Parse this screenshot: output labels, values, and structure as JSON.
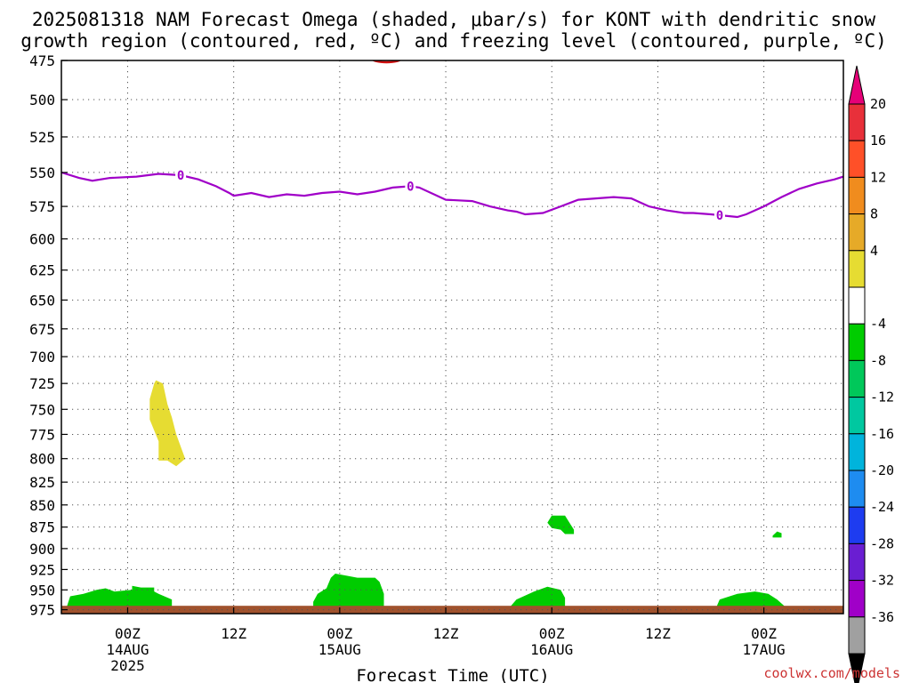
{
  "title_line1": "2025081318 NAM Forecast Omega (shaded, μbar/s) for KONT with dendritic snow",
  "title_line2": "growth region (contoured, red, ºC) and freezing level (contoured, purple, ºC)",
  "credit": "coolwx.com/models",
  "chart_data": {
    "type": "time-height cross-section",
    "xlabel": "Forecast Time (UTC)",
    "x_range_hours": [
      -7.5,
      81
    ],
    "y_range_hpa": [
      475,
      980
    ],
    "y_scale": "log-pressure, inverted (increasing downward)",
    "grid": "dotted, on",
    "y_ticks": [
      475,
      500,
      525,
      550,
      575,
      600,
      625,
      650,
      675,
      700,
      725,
      750,
      775,
      800,
      825,
      850,
      875,
      900,
      925,
      950,
      975
    ],
    "x_ticks": [
      {
        "hour": 0,
        "l1": "00Z",
        "l2": "14AUG",
        "l3": "2025"
      },
      {
        "hour": 12,
        "l1": "12Z",
        "l2": "",
        "l3": ""
      },
      {
        "hour": 24,
        "l1": "00Z",
        "l2": "15AUG",
        "l3": ""
      },
      {
        "hour": 36,
        "l1": "12Z",
        "l2": "",
        "l3": ""
      },
      {
        "hour": 48,
        "l1": "00Z",
        "l2": "16AUG",
        "l3": ""
      },
      {
        "hour": 60,
        "l1": "12Z",
        "l2": "",
        "l3": ""
      },
      {
        "hour": 72,
        "l1": "00Z",
        "l2": "17AUG",
        "l3": ""
      }
    ],
    "freezing_level": {
      "contour_label": "0",
      "color": "#a000c8",
      "label_hours": [
        6,
        32,
        67
      ],
      "points": [
        [
          -7.5,
          550
        ],
        [
          -5.5,
          554
        ],
        [
          -4,
          556
        ],
        [
          -2,
          554
        ],
        [
          1,
          553
        ],
        [
          3.5,
          551
        ],
        [
          6,
          552
        ],
        [
          8,
          555
        ],
        [
          10,
          560
        ],
        [
          11.5,
          565
        ],
        [
          12,
          567
        ],
        [
          14,
          565
        ],
        [
          16,
          568
        ],
        [
          18,
          566
        ],
        [
          20,
          567
        ],
        [
          22,
          565
        ],
        [
          24,
          564
        ],
        [
          26,
          566
        ],
        [
          28,
          564
        ],
        [
          30,
          561
        ],
        [
          32,
          560
        ],
        [
          33,
          561
        ],
        [
          36,
          570
        ],
        [
          39,
          571
        ],
        [
          41,
          575
        ],
        [
          43,
          578
        ],
        [
          44,
          579
        ],
        [
          45,
          581
        ],
        [
          47,
          580
        ],
        [
          49,
          575
        ],
        [
          51,
          570
        ],
        [
          53,
          569
        ],
        [
          55,
          568
        ],
        [
          57,
          569
        ],
        [
          59,
          575
        ],
        [
          61,
          578
        ],
        [
          63,
          580
        ],
        [
          64,
          580
        ],
        [
          66,
          581
        ],
        [
          69,
          583
        ],
        [
          70,
          581
        ],
        [
          72,
          575
        ],
        [
          74,
          568
        ],
        [
          76,
          562
        ],
        [
          78,
          558
        ],
        [
          80,
          555
        ],
        [
          81,
          553
        ]
      ]
    },
    "dgz_contour": {
      "color": "#d01010",
      "label": "",
      "hours": [
        0,
        48
      ],
      "top_hpa": 475
    },
    "ground": {
      "color": "#a0522d",
      "top_hpa": 970
    },
    "omega_areas": [
      {
        "category": "4 to 8",
        "color": "#e6dc32",
        "points": [
          [
            3.2,
            722
          ],
          [
            4,
            725
          ],
          [
            4.5,
            745
          ],
          [
            5,
            758
          ],
          [
            5.5,
            775
          ],
          [
            6.5,
            800
          ],
          [
            5.5,
            808
          ],
          [
            4.5,
            802
          ],
          [
            3.5,
            802
          ],
          [
            3.5,
            782
          ],
          [
            2.5,
            760
          ],
          [
            2.5,
            740
          ],
          [
            3,
            725
          ]
        ]
      },
      {
        "category": "-4 to -8",
        "color": "#00cc00",
        "points": [
          [
            -7,
            975
          ],
          [
            -6.5,
            958
          ],
          [
            -5,
            955
          ],
          [
            -3.5,
            950
          ],
          [
            -2.5,
            948
          ],
          [
            -1.5,
            952
          ],
          [
            0.5,
            950
          ],
          [
            0.5,
            945
          ],
          [
            1.5,
            947
          ],
          [
            3,
            947
          ],
          [
            3,
            952
          ],
          [
            3.5,
            955
          ],
          [
            5,
            962
          ],
          [
            5,
            972
          ]
        ]
      },
      {
        "category": "-4 to -8",
        "color": "#00cc00",
        "points": [
          [
            21,
            975
          ],
          [
            21,
            965
          ],
          [
            21.5,
            955
          ],
          [
            22.5,
            948
          ],
          [
            23,
            935
          ],
          [
            23.5,
            930
          ],
          [
            25,
            933
          ],
          [
            26,
            935
          ],
          [
            28,
            935
          ],
          [
            28.5,
            940
          ],
          [
            29,
            955
          ],
          [
            29,
            975
          ]
        ]
      },
      {
        "category": "-4 to -8",
        "color": "#00cc00",
        "points": [
          [
            43,
            975
          ],
          [
            44,
            962
          ],
          [
            46,
            952
          ],
          [
            47.5,
            946
          ],
          [
            49,
            950
          ],
          [
            49.5,
            960
          ],
          [
            49.5,
            972
          ]
        ]
      },
      {
        "category": "-4 to -8",
        "color": "#00cc00",
        "points": [
          [
            47.5,
            870
          ],
          [
            48,
            862
          ],
          [
            49.5,
            862
          ],
          [
            50,
            870
          ],
          [
            50.5,
            878
          ],
          [
            50.5,
            883
          ],
          [
            49.5,
            883
          ],
          [
            49,
            878
          ],
          [
            48,
            876
          ]
        ]
      },
      {
        "category": "-4 to -8",
        "color": "#00cc00",
        "points": [
          [
            73,
            885
          ],
          [
            73.5,
            880
          ],
          [
            74,
            882
          ],
          [
            74,
            887
          ],
          [
            73,
            887
          ]
        ]
      },
      {
        "category": "-4 to -8",
        "color": "#00cc00",
        "points": [
          [
            66.5,
            975
          ],
          [
            67,
            962
          ],
          [
            69,
            955
          ],
          [
            71,
            952
          ],
          [
            72.5,
            955
          ],
          [
            73.5,
            962
          ],
          [
            74.5,
            972
          ]
        ]
      }
    ]
  },
  "colorbar": {
    "top_triangle_color": "#e60078",
    "bottom_triangle_color": "#000000",
    "boxes": [
      {
        "color": "#e8303a",
        "label": "20"
      },
      {
        "color": "#ff5028",
        "label": "16"
      },
      {
        "color": "#f08c1e",
        "label": "12"
      },
      {
        "color": "#e6aa28",
        "label": "8"
      },
      {
        "color": "#e6dc32",
        "label": "4"
      },
      {
        "color": "#ffffff",
        "label": ""
      },
      {
        "color": "#00cc00",
        "label": "-4"
      },
      {
        "color": "#00c85a",
        "label": "-8"
      },
      {
        "color": "#00c8a0",
        "label": "-12"
      },
      {
        "color": "#00b4dc",
        "label": "-16"
      },
      {
        "color": "#1e8cf0",
        "label": "-20"
      },
      {
        "color": "#1e3cf0",
        "label": "-24"
      },
      {
        "color": "#6a1ed2",
        "label": "-28"
      },
      {
        "color": "#a000c8",
        "label": "-32"
      },
      {
        "color": "#a0a0a0",
        "label": "-36"
      }
    ]
  }
}
